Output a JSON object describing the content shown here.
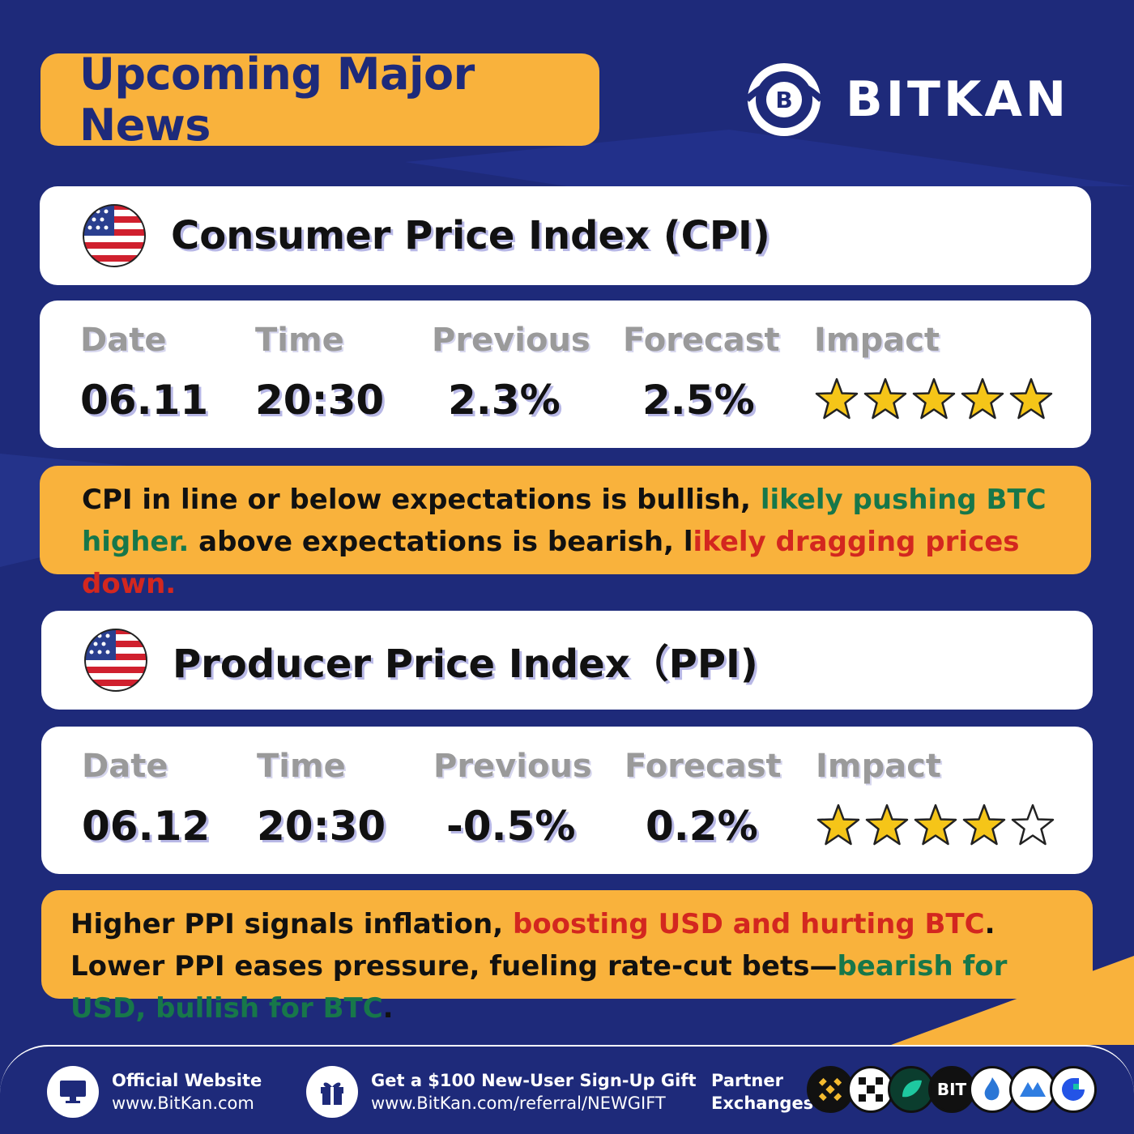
{
  "headline": "Upcoming Major News",
  "brand": "BITKAN",
  "events": [
    {
      "title": "Consumer Price Index (CPI)",
      "columns": [
        "Date",
        "Time",
        "Previous",
        "Forecast",
        "Impact"
      ],
      "date": "06.11",
      "time": "20:30",
      "previous": "2.3%",
      "forecast": "2.5%",
      "impact_stars": 5,
      "impact_max": 5,
      "note_parts": [
        {
          "text": "CPI in line or below expectations is bullish, ",
          "tone": "plain"
        },
        {
          "text": "likely pushing BTC higher.",
          "tone": "green"
        },
        {
          "text": " above expectations is bearish, l",
          "tone": "plain"
        },
        {
          "text": "ikely dragging prices down.",
          "tone": "red"
        }
      ]
    },
    {
      "title": "Producer Price Index（PPI)",
      "columns": [
        "Date",
        "Time",
        "Previous",
        "Forecast",
        "Impact"
      ],
      "date": "06.12",
      "time": "20:30",
      "previous": "-0.5%",
      "forecast": "0.2%",
      "impact_stars": 4,
      "impact_max": 5,
      "note_parts": [
        {
          "text": "Higher PPI signals inflation, ",
          "tone": "plain"
        },
        {
          "text": "boosting USD and hurting BTC",
          "tone": "red"
        },
        {
          "text": ". Lower PPI eases pressure, fueling rate-cut bets—",
          "tone": "plain"
        },
        {
          "text": "bearish for USD, bullish for BTC",
          "tone": "green"
        },
        {
          "text": ".",
          "tone": "plain"
        }
      ]
    }
  ],
  "footer": {
    "website_label": "Official Website",
    "website_url": "www.BitKan.com",
    "gift_label": "Get a $100 New-User Sign-Up Gift",
    "gift_url": "www.BitKan.com/referral/NEWGIFT",
    "partner_label_1": "Partner",
    "partner_label_2": "Exchanges",
    "partner_text_logo": "BIT"
  },
  "colors": {
    "background": "#1e2a7a",
    "accent": "#f9b23c",
    "star": "#f5c518",
    "green": "#17774a",
    "red": "#d3271f"
  }
}
